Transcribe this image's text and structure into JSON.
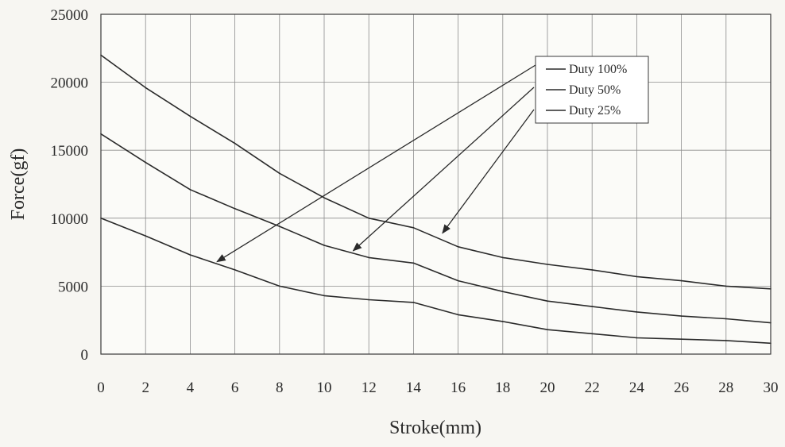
{
  "chart_data": {
    "type": "line",
    "title": "",
    "xlabel": "Stroke(mm)",
    "ylabel": "Force(gf)",
    "xlim": [
      0,
      30
    ],
    "ylim": [
      0,
      25000
    ],
    "x_ticks": [
      0,
      2,
      4,
      6,
      8,
      10,
      12,
      14,
      16,
      18,
      20,
      22,
      24,
      26,
      28,
      30
    ],
    "y_ticks": [
      0,
      5000,
      10000,
      15000,
      20000,
      25000
    ],
    "grid": true,
    "legend_position": "top-right",
    "series": [
      {
        "name": "Duty 100%",
        "x": [
          0,
          2,
          4,
          6,
          8,
          10,
          12,
          14,
          16,
          18,
          20,
          22,
          24,
          26,
          28,
          30
        ],
        "values": [
          22000,
          19600,
          17500,
          15500,
          13300,
          11500,
          10000,
          9300,
          7900,
          7100,
          6600,
          6200,
          5700,
          5400,
          5000,
          4800
        ]
      },
      {
        "name": "Duty 50%",
        "x": [
          0,
          2,
          4,
          6,
          8,
          10,
          12,
          14,
          16,
          18,
          20,
          22,
          24,
          26,
          28,
          30
        ],
        "values": [
          16200,
          14100,
          12100,
          10700,
          9400,
          8000,
          7100,
          6700,
          5400,
          4600,
          3900,
          3500,
          3100,
          2800,
          2600,
          2300
        ]
      },
      {
        "name": "Duty 25%",
        "x": [
          0,
          2,
          4,
          6,
          8,
          10,
          12,
          14,
          16,
          18,
          20,
          22,
          24,
          26,
          28,
          30
        ],
        "values": [
          10000,
          8700,
          7300,
          6200,
          5000,
          4300,
          4000,
          3800,
          2900,
          2400,
          1800,
          1500,
          1200,
          1100,
          1000,
          800
        ]
      }
    ],
    "annotations": [
      {
        "from_series": "Duty 100%",
        "points_to": {
          "x": 5.2,
          "y": 6800
        }
      },
      {
        "from_series": "Duty 50%",
        "points_to": {
          "x": 11.3,
          "y": 7600
        }
      },
      {
        "from_series": "Duty 25%",
        "points_to": {
          "x": 15.3,
          "y": 8900
        }
      }
    ]
  }
}
